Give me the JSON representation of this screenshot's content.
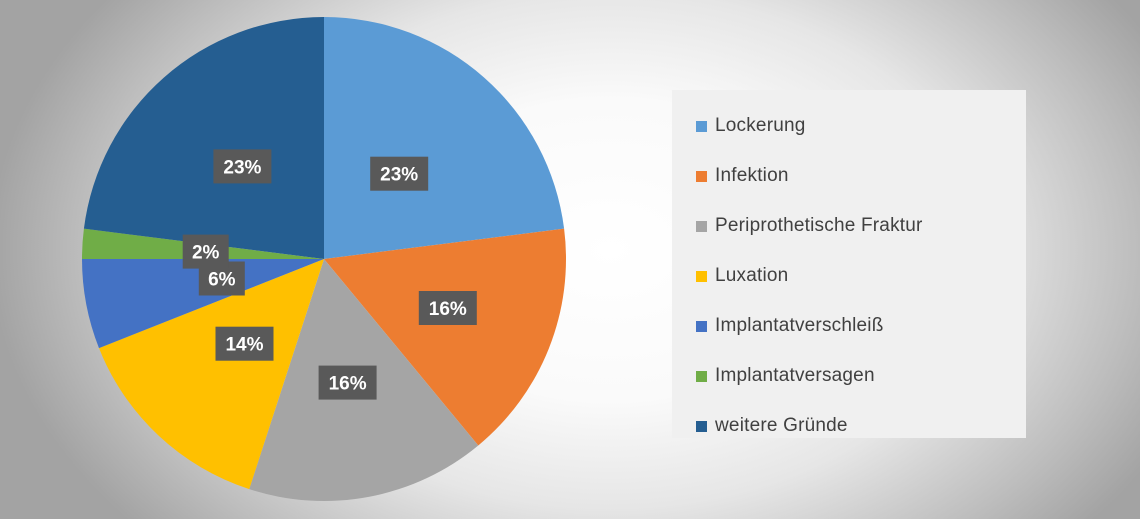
{
  "chart_data": {
    "type": "pie",
    "title": "",
    "slices": [
      {
        "label": "Lockerung",
        "value": 23,
        "display": "23%",
        "color": "#5b9bd5"
      },
      {
        "label": "Infektion",
        "value": 16,
        "display": "16%",
        "color": "#ed7d31"
      },
      {
        "label": "Periprothetische Fraktur",
        "value": 16,
        "display": "16%",
        "color": "#a5a5a5"
      },
      {
        "label": "Luxation",
        "value": 14,
        "display": "14%",
        "color": "#ffc000"
      },
      {
        "label": "Implantatverschleiß",
        "value": 6,
        "display": "6%",
        "color": "#4472c4"
      },
      {
        "label": "Implantatversagen",
        "value": 2,
        "display": "2%",
        "color": "#70ad47"
      },
      {
        "label": "weitere Gründe",
        "value": 23,
        "display": "23%",
        "color": "#255e91"
      }
    ],
    "legend_position": "right",
    "data_label_background": "#595959",
    "data_label_color": "#ffffff"
  }
}
